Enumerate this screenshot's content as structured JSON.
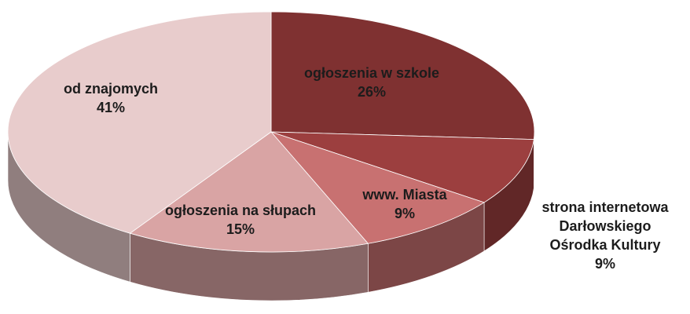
{
  "chart_data": {
    "type": "pie",
    "categories": [
      "ogłoszenia w szkole",
      "strona internetowa Darłowskiego Ośrodka Kultury",
      "www. Miasta",
      "ogłoszenia na słupach",
      "od znajomych"
    ],
    "values": [
      26,
      9,
      9,
      15,
      41
    ],
    "value_labels": [
      "26%",
      "9%",
      "9%",
      "15%",
      "41%"
    ],
    "colors": [
      "#7f3131",
      "#9c3f3f",
      "#c87171",
      "#d9a4a4",
      "#e8cccc"
    ]
  }
}
